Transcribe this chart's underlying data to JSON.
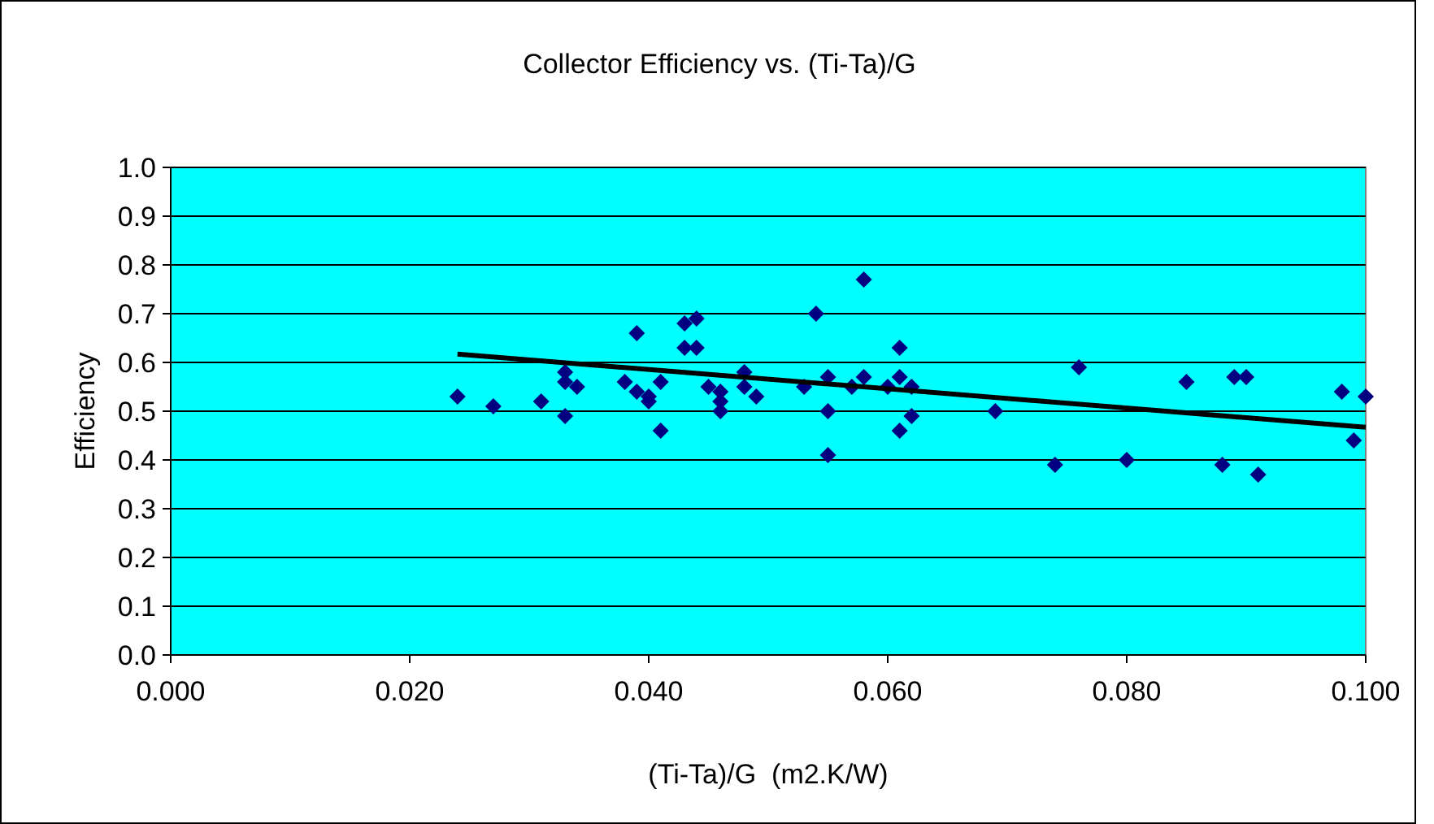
{
  "chart_data": {
    "type": "scatter",
    "title": "Collector Efficiency vs. (Ti-Ta)/G",
    "xlabel": "(Ti-Ta)/G  (m2.K/W)",
    "ylabel": "Efficiency",
    "xlim": [
      0,
      0.1
    ],
    "ylim": [
      0,
      1
    ],
    "xticks": [
      {
        "value": 0,
        "label": "0.000"
      },
      {
        "value": 0.02,
        "label": "0.020"
      },
      {
        "value": 0.04,
        "label": "0.040"
      },
      {
        "value": 0.06,
        "label": "0.060"
      },
      {
        "value": 0.08,
        "label": "0.080"
      },
      {
        "value": 0.1,
        "label": "0.100"
      }
    ],
    "yticks": [
      {
        "value": 0,
        "label": "0.0"
      },
      {
        "value": 0.1,
        "label": "0.1"
      },
      {
        "value": 0.2,
        "label": "0.2"
      },
      {
        "value": 0.3,
        "label": "0.3"
      },
      {
        "value": 0.4,
        "label": "0.4"
      },
      {
        "value": 0.5,
        "label": "0.5"
      },
      {
        "value": 0.6,
        "label": "0.6"
      },
      {
        "value": 0.7,
        "label": "0.7"
      },
      {
        "value": 0.8,
        "label": "0.8"
      },
      {
        "value": 0.9,
        "label": "0.9"
      },
      {
        "value": 1,
        "label": "1.0"
      }
    ],
    "grid": "y",
    "marker": "diamond",
    "series": [
      {
        "color": "#000080",
        "x": [
          0.024,
          0.027,
          0.031,
          0.033,
          0.033,
          0.034,
          0.033,
          0.039,
          0.038,
          0.039,
          0.04,
          0.04,
          0.041,
          0.041,
          0.043,
          0.044,
          0.043,
          0.044,
          0.045,
          0.046,
          0.046,
          0.046,
          0.048,
          0.048,
          0.049,
          0.053,
          0.054,
          0.055,
          0.055,
          0.055,
          0.058,
          0.058,
          0.057,
          0.06,
          0.061,
          0.061,
          0.062,
          0.062,
          0.061,
          0.069,
          0.074,
          0.076,
          0.08,
          0.085,
          0.088,
          0.089,
          0.09,
          0.091,
          0.098,
          0.1,
          0.099
        ],
        "values": [
          0.53,
          0.51,
          0.52,
          0.58,
          0.56,
          0.55,
          0.49,
          0.66,
          0.56,
          0.54,
          0.53,
          0.52,
          0.56,
          0.46,
          0.68,
          0.69,
          0.63,
          0.63,
          0.55,
          0.54,
          0.52,
          0.5,
          0.58,
          0.55,
          0.53,
          0.55,
          0.7,
          0.57,
          0.5,
          0.41,
          0.77,
          0.57,
          0.55,
          0.55,
          0.57,
          0.63,
          0.55,
          0.49,
          0.46,
          0.5,
          0.39,
          0.59,
          0.4,
          0.56,
          0.39,
          0.57,
          0.57,
          0.37,
          0.54,
          0.53,
          0.44
        ]
      },
      {
        "type": "line",
        "color": "#000000",
        "marker": "none",
        "line_style": "solid",
        "x": [
          0.024,
          0.1
        ],
        "values": [
          0.617,
          0.467
        ]
      }
    ]
  }
}
